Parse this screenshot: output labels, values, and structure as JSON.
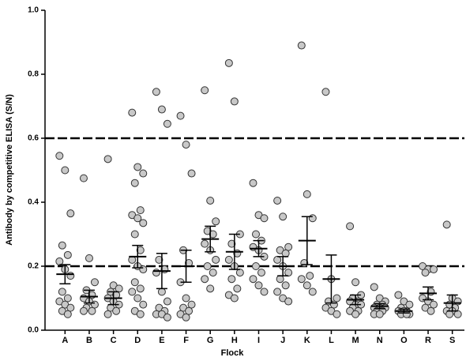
{
  "chart_data": {
    "type": "dot",
    "x_label": "Flock",
    "y_label": "Antibody by competitive ELISA (S/N)",
    "categories": [
      "A",
      "B",
      "C",
      "D",
      "E",
      "F",
      "G",
      "H",
      "I",
      "J",
      "K",
      "L",
      "M",
      "N",
      "O",
      "R",
      "S"
    ],
    "points": [
      [
        0.545,
        0.5,
        0.365,
        0.265,
        0.235,
        0.215,
        0.19,
        0.17,
        0.12,
        0.1,
        0.09,
        0.08,
        0.07,
        0.06,
        0.05
      ],
      [
        0.475,
        0.225,
        0.15,
        0.125,
        0.11,
        0.1,
        0.09,
        0.08,
        0.07,
        0.06,
        0.06
      ],
      [
        0.535,
        0.14,
        0.13,
        0.12,
        0.11,
        0.1,
        0.09,
        0.08,
        0.07,
        0.06,
        0.05
      ],
      [
        0.68,
        0.51,
        0.49,
        0.46,
        0.375,
        0.36,
        0.35,
        0.335,
        0.3,
        0.25,
        0.22,
        0.2,
        0.19,
        0.15,
        0.13,
        0.12,
        0.1,
        0.08,
        0.06,
        0.05
      ],
      [
        0.745,
        0.69,
        0.645,
        0.22,
        0.19,
        0.18,
        0.12,
        0.09,
        0.07,
        0.06,
        0.05,
        0.05,
        0.04
      ],
      [
        0.67,
        0.58,
        0.49,
        0.25,
        0.21,
        0.15,
        0.1,
        0.08,
        0.07,
        0.06,
        0.05,
        0.04
      ],
      [
        0.75,
        0.405,
        0.34,
        0.31,
        0.3,
        0.27,
        0.25,
        0.22,
        0.2,
        0.18,
        0.16,
        0.13
      ],
      [
        0.835,
        0.715,
        0.3,
        0.27,
        0.24,
        0.22,
        0.2,
        0.18,
        0.16,
        0.13,
        0.11,
        0.1
      ],
      [
        0.46,
        0.36,
        0.35,
        0.3,
        0.28,
        0.26,
        0.25,
        0.23,
        0.2,
        0.18,
        0.16,
        0.14,
        0.12
      ],
      [
        0.405,
        0.355,
        0.26,
        0.25,
        0.24,
        0.22,
        0.2,
        0.18,
        0.16,
        0.14,
        0.12,
        0.1,
        0.09
      ],
      [
        0.89,
        0.425,
        0.35,
        0.21,
        0.17,
        0.16,
        0.14,
        0.12
      ],
      [
        0.745,
        0.16,
        0.1,
        0.09,
        0.08,
        0.07,
        0.06,
        0.05
      ],
      [
        0.325,
        0.15,
        0.11,
        0.1,
        0.09,
        0.09,
        0.08,
        0.08,
        0.07,
        0.06,
        0.06,
        0.05
      ],
      [
        0.135,
        0.1,
        0.09,
        0.08,
        0.08,
        0.07,
        0.07,
        0.07,
        0.06,
        0.06,
        0.05,
        0.05
      ],
      [
        0.11,
        0.09,
        0.08,
        0.07,
        0.06,
        0.06,
        0.06,
        0.05,
        0.05,
        0.05
      ],
      [
        0.2,
        0.19,
        0.19,
        0.18,
        0.12,
        0.1,
        0.09,
        0.08,
        0.07,
        0.06
      ],
      [
        0.33,
        0.1,
        0.09,
        0.08,
        0.07,
        0.06,
        0.06,
        0.05,
        0.05
      ]
    ],
    "means": [
      0.175,
      0.105,
      0.1,
      0.23,
      0.185,
      0.2,
      0.285,
      0.245,
      0.255,
      0.2,
      0.28,
      0.16,
      0.095,
      0.075,
      0.06,
      0.115,
      0.085
    ],
    "errors": [
      0.03,
      0.02,
      0.02,
      0.035,
      0.055,
      0.05,
      0.04,
      0.055,
      0.025,
      0.03,
      0.075,
      0.075,
      0.015,
      0.008,
      0.006,
      0.02,
      0.025
    ],
    "reference_lines": [
      0.2,
      0.6
    ],
    "point_color": "#c8c8c8",
    "ylim": [
      0,
      1
    ],
    "yticks": [
      {
        "value": 0,
        "label": "0.0"
      },
      0.2,
      0.4,
      0.6,
      0.8,
      {
        "value": 1,
        "label": "1.0"
      }
    ]
  }
}
